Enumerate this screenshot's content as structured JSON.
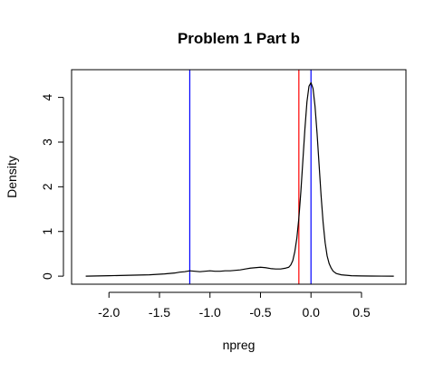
{
  "chart_data": {
    "type": "line",
    "title": "Problem 1 Part b",
    "xlabel": "npreg",
    "ylabel": "Density",
    "xlim": [
      -2.37,
      0.94
    ],
    "ylim": [
      -0.18,
      4.62
    ],
    "xticks": [
      -2.0,
      -1.5,
      -1.0,
      -0.5,
      0.0,
      0.5
    ],
    "xtick_labels": [
      "-2.0",
      "-1.5",
      "-1.0",
      "-0.5",
      "0.0",
      "0.5"
    ],
    "yticks": [
      0,
      1,
      2,
      3,
      4
    ],
    "ytick_labels": [
      "0",
      "1",
      "2",
      "3",
      "4"
    ],
    "grid": false,
    "series": [
      {
        "color": "#000000",
        "x": [
          -2.23,
          -2.0,
          -1.8,
          -1.6,
          -1.45,
          -1.35,
          -1.3,
          -1.25,
          -1.2,
          -1.15,
          -1.1,
          -1.05,
          -1.0,
          -0.95,
          -0.9,
          -0.85,
          -0.8,
          -0.75,
          -0.7,
          -0.65,
          -0.6,
          -0.55,
          -0.5,
          -0.45,
          -0.4,
          -0.35,
          -0.3,
          -0.25,
          -0.22,
          -0.2,
          -0.18,
          -0.16,
          -0.14,
          -0.12,
          -0.1,
          -0.08,
          -0.06,
          -0.04,
          -0.02,
          0.0,
          0.02,
          0.04,
          0.06,
          0.08,
          0.1,
          0.12,
          0.14,
          0.16,
          0.18,
          0.2,
          0.22,
          0.25,
          0.3,
          0.4,
          0.5,
          0.6,
          0.7,
          0.82
        ],
        "y": [
          0.0,
          0.01,
          0.02,
          0.03,
          0.05,
          0.07,
          0.09,
          0.1,
          0.12,
          0.11,
          0.1,
          0.11,
          0.12,
          0.11,
          0.11,
          0.12,
          0.12,
          0.13,
          0.14,
          0.16,
          0.18,
          0.19,
          0.2,
          0.19,
          0.17,
          0.16,
          0.16,
          0.18,
          0.2,
          0.25,
          0.35,
          0.55,
          0.85,
          1.3,
          1.9,
          2.6,
          3.3,
          3.9,
          4.25,
          4.33,
          4.2,
          3.8,
          3.2,
          2.5,
          1.8,
          1.2,
          0.75,
          0.45,
          0.28,
          0.18,
          0.11,
          0.06,
          0.03,
          0.01,
          0.005,
          0.002,
          0.001,
          0.0
        ]
      }
    ],
    "vlines": [
      {
        "x": -1.2,
        "color": "#0000ff"
      },
      {
        "x": -0.12,
        "color": "#ff0000"
      },
      {
        "x": 0.0,
        "color": "#0000ff"
      }
    ]
  }
}
